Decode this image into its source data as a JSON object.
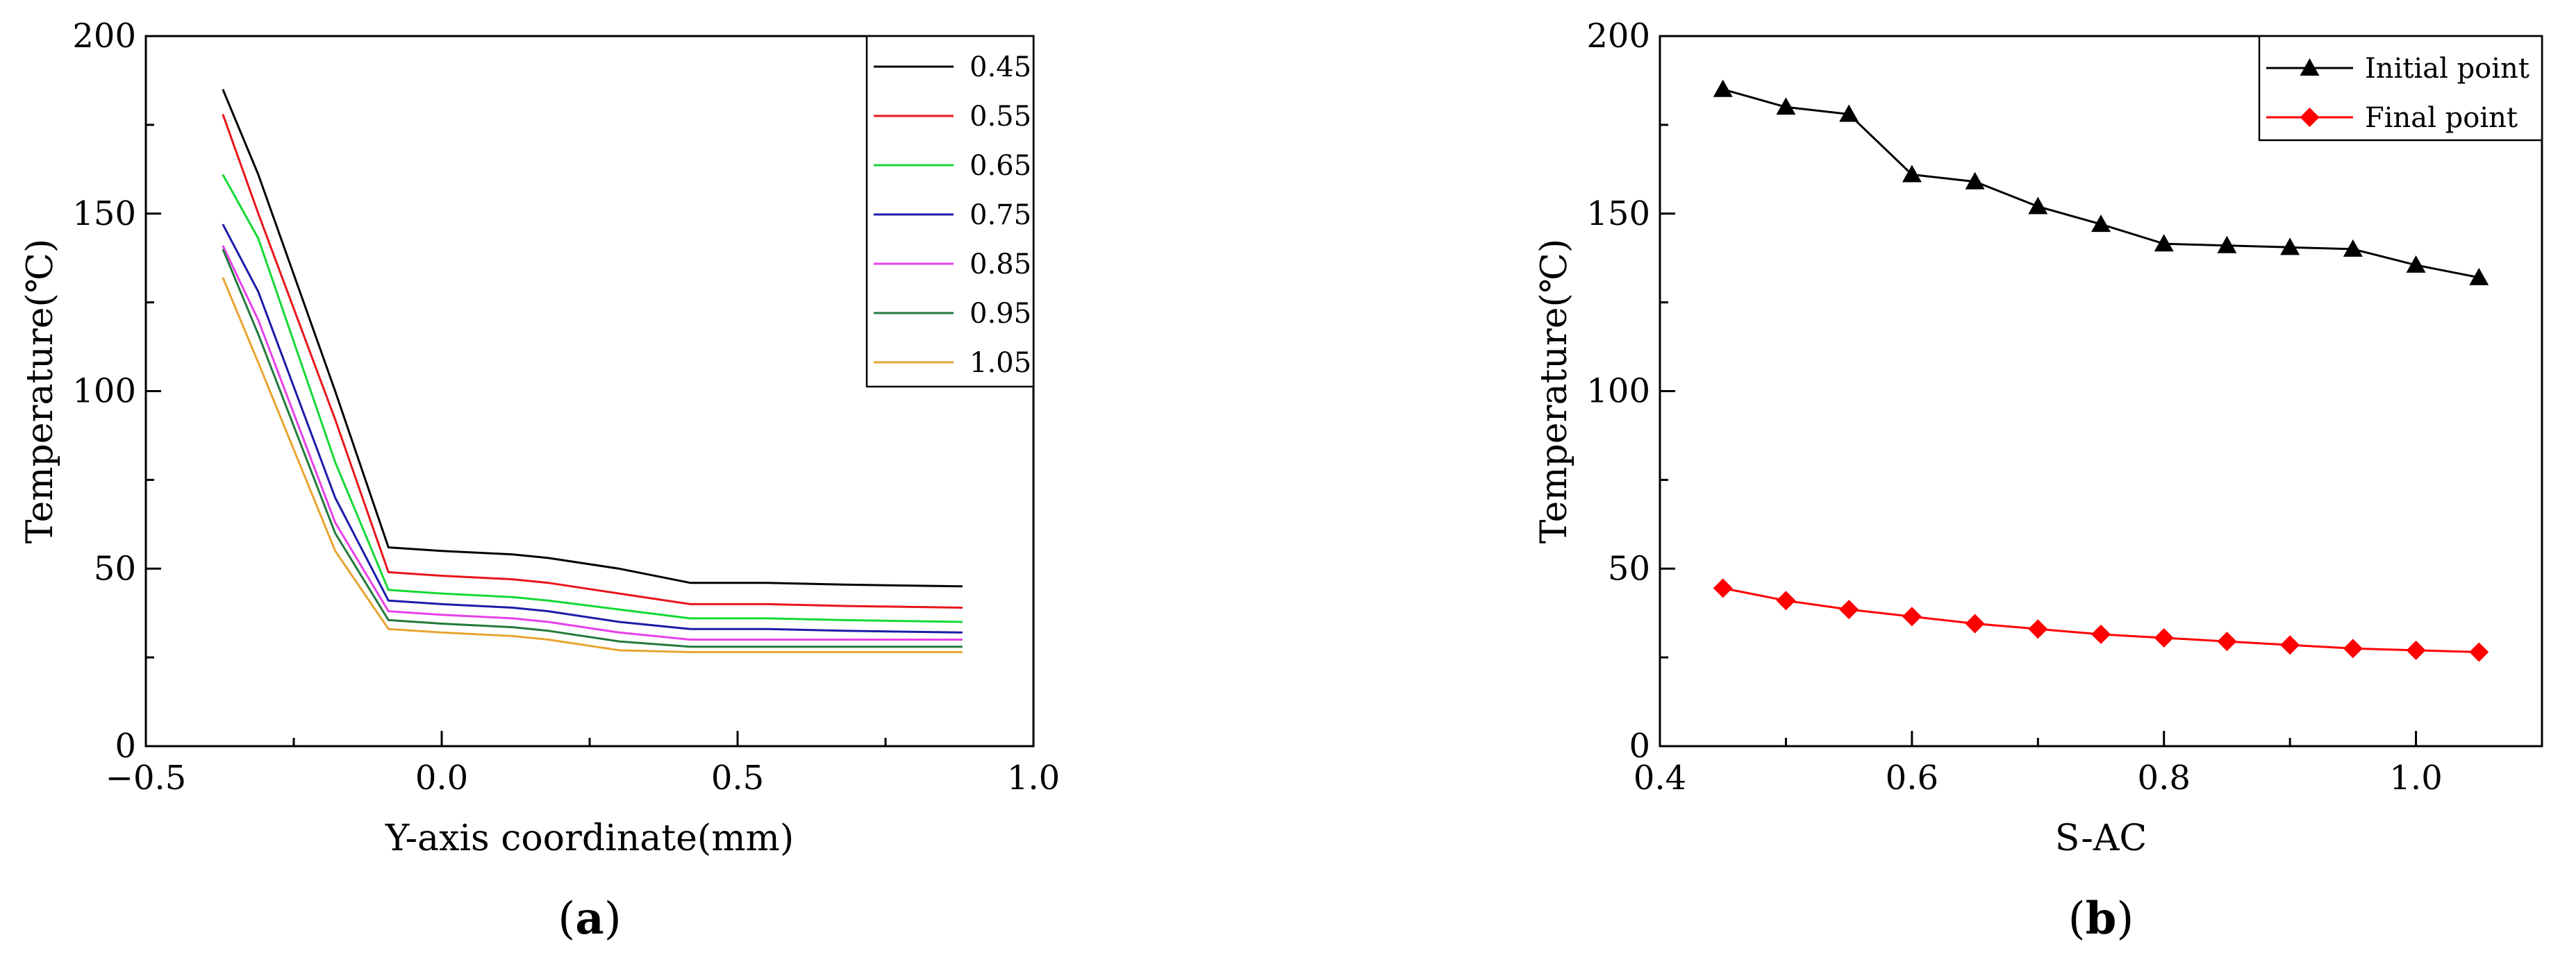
{
  "chart_data": [
    {
      "type": "line",
      "panel_label": {
        "open": "(",
        "letter": "a",
        "close": ")"
      },
      "xlabel": "Y-axis coordinate(mm)",
      "ylabel": "Temperature(℃)",
      "xlim": [
        -0.5,
        1.0
      ],
      "ylim": [
        0,
        200
      ],
      "xticks": [
        -0.5,
        0.0,
        0.5,
        1.0
      ],
      "xtick_labels": [
        "−0.5",
        "0.0",
        "0.5",
        "1.0"
      ],
      "yticks": [
        0,
        50,
        100,
        150,
        200
      ],
      "ytick_labels": [
        "0",
        "50",
        "100",
        "150",
        "200"
      ],
      "grid": false,
      "legend": "top-right",
      "x": [
        -0.37,
        -0.31,
        -0.18,
        -0.09,
        0.0,
        0.12,
        0.18,
        0.3,
        0.42,
        0.55,
        0.68,
        0.88
      ],
      "series": [
        {
          "name": "0.45",
          "color": "#000000",
          "values": [
            185,
            161,
            100,
            56,
            55,
            54,
            53,
            50,
            46,
            46,
            45.5,
            45
          ]
        },
        {
          "name": "0.55",
          "color": "#e8151a",
          "values": [
            178,
            150,
            92,
            49,
            48,
            47,
            46,
            43,
            40,
            40,
            39.5,
            39
          ]
        },
        {
          "name": "0.65",
          "color": "#15d835",
          "values": [
            161,
            143,
            80,
            44,
            43,
            42,
            41,
            38.5,
            36,
            36,
            35.5,
            35
          ]
        },
        {
          "name": "0.75",
          "color": "#1b1ba8",
          "values": [
            147,
            128,
            70,
            41,
            40,
            39,
            38,
            35,
            33,
            33,
            32.5,
            32
          ]
        },
        {
          "name": "0.85",
          "color": "#e840e8",
          "values": [
            141,
            120,
            63,
            38,
            37,
            36,
            35,
            32,
            30,
            30,
            30,
            30
          ]
        },
        {
          "name": "0.95",
          "color": "#217a3c",
          "values": [
            140,
            116,
            60,
            35.5,
            34.5,
            33.5,
            32.5,
            29.5,
            28,
            28,
            28,
            28
          ]
        },
        {
          "name": "1.05",
          "color": "#e8a530",
          "values": [
            132,
            108,
            55,
            33,
            32,
            31,
            30,
            27,
            26.5,
            26.5,
            26.5,
            26.5
          ]
        }
      ]
    },
    {
      "type": "line",
      "panel_label": {
        "open": "(",
        "letter": "b",
        "close": ")"
      },
      "xlabel": "S-AC",
      "ylabel": "Temperature(℃)",
      "xlim": [
        0.4,
        1.1
      ],
      "ylim": [
        0,
        200
      ],
      "xticks": [
        0.4,
        0.6,
        0.8,
        1.0
      ],
      "xtick_labels": [
        "0.4",
        "0.6",
        "0.8",
        "1.0"
      ],
      "yticks": [
        0,
        50,
        100,
        150,
        200
      ],
      "ytick_labels": [
        "0",
        "50",
        "100",
        "150",
        "200"
      ],
      "grid": false,
      "legend": "top-right",
      "x": [
        0.45,
        0.5,
        0.55,
        0.6,
        0.65,
        0.7,
        0.75,
        0.8,
        0.85,
        0.9,
        0.95,
        1.0,
        1.05
      ],
      "series": [
        {
          "name": "Initial point",
          "color": "#000000",
          "marker": "triangle",
          "values": [
            185,
            180,
            178,
            161,
            159,
            152,
            147,
            141.5,
            141,
            140.5,
            140,
            135.5,
            132
          ]
        },
        {
          "name": "Final point",
          "color": "#ff0000",
          "marker": "diamond",
          "values": [
            44.5,
            41,
            38.5,
            36.5,
            34.5,
            33,
            31.5,
            30.5,
            29.5,
            28.5,
            27.5,
            27,
            26.5
          ]
        }
      ]
    }
  ]
}
